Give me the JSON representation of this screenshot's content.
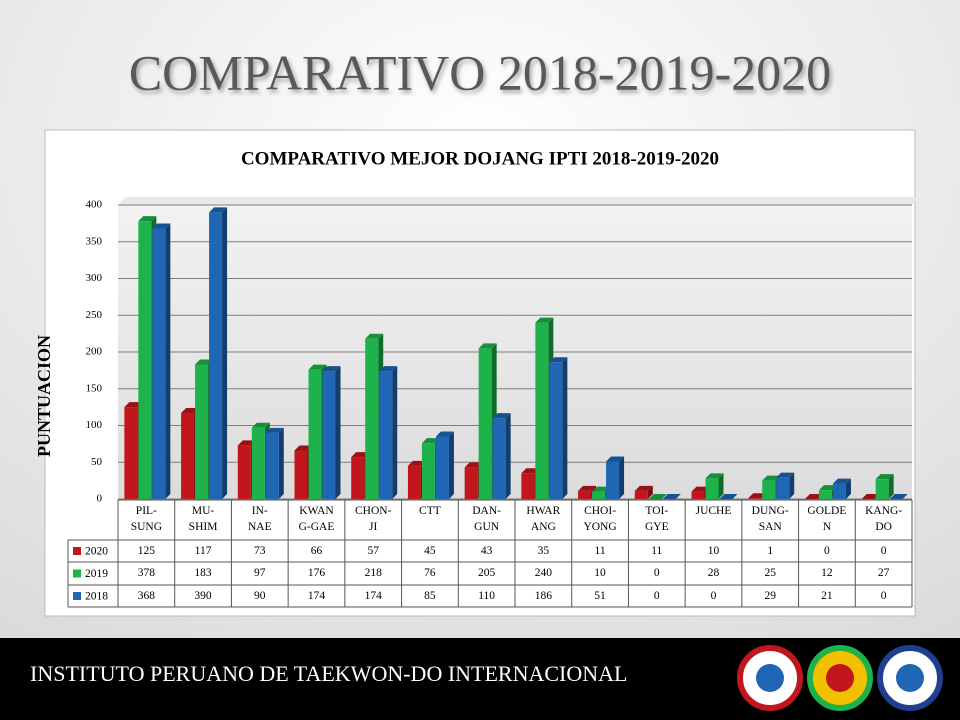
{
  "slide_title": "COMPARATIVO 2018-2019-2020",
  "footer": "INSTITUTO PERUANO DE TAEKWON-DO INTERNACIONAL",
  "chart_data": {
    "type": "bar",
    "title": "COMPARATIVO MEJOR DOJANG IPTI 2018-2019-2020",
    "y_label": "PUNTUACION",
    "categories": [
      "PIL-\nSUNG",
      "MU-\nSHIM",
      "IN-\nNAE",
      "KWAN\nG-GAE",
      "CHON-\nJI",
      "CTT",
      "DAN-\nGUN",
      "HWAR\nANG",
      "CHOI-\nYONG",
      "TOI-\nGYE",
      "JUCHE",
      "DUNG-\nSAN",
      "GOLDE\nN",
      "KANG-\nDO"
    ],
    "series": [
      {
        "name": "2020",
        "color": "#c0161c",
        "values": [
          125,
          117,
          73,
          66,
          57,
          45,
          43,
          35,
          11,
          11,
          10,
          1,
          0,
          0
        ]
      },
      {
        "name": "2019",
        "color": "#1db34a",
        "values": [
          378,
          183,
          97,
          176,
          218,
          76,
          205,
          240,
          10,
          0,
          28,
          25,
          12,
          27
        ]
      },
      {
        "name": "2018",
        "color": "#1f66b4",
        "values": [
          368,
          390,
          90,
          174,
          174,
          85,
          110,
          186,
          51,
          0,
          0,
          29,
          21,
          0
        ]
      }
    ],
    "ylim": [
      0,
      400
    ],
    "yticks": [
      0,
      50,
      100,
      150,
      200,
      250,
      300,
      350,
      400
    ],
    "grid": true
  }
}
